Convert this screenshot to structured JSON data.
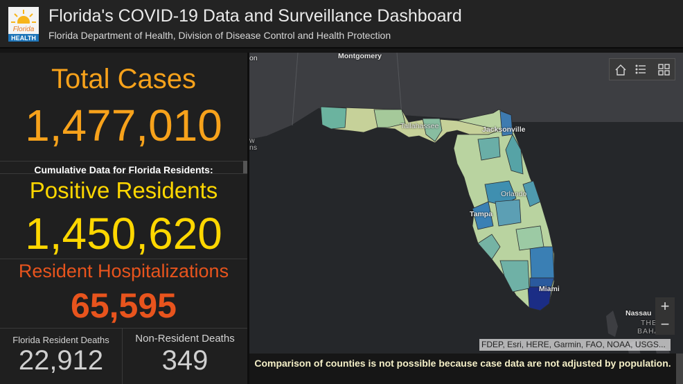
{
  "header": {
    "title": "Florida's COVID-19 Data and Surveillance Dashboard",
    "subtitle": "Florida Department of Health, Division of Disease Control and Health Protection",
    "logo_line1": "Florida",
    "logo_line2": "HEALTH"
  },
  "total_cases": {
    "label": "Total Cases",
    "value": "1,477,010"
  },
  "cumulative_label": "Cumulative Data for Florida Residents:",
  "positive_residents": {
    "label": "Positive Residents",
    "value": "1,450,620"
  },
  "hospitalizations": {
    "label": "Resident Hospitalizations",
    "value": "65,595"
  },
  "deaths": {
    "resident_label": "Florida Resident Deaths",
    "resident_value": "22,912",
    "nonresident_label": "Non-Resident Deaths",
    "nonresident_value": "349"
  },
  "map": {
    "cities": [
      "Montgomery",
      "Tallahassee",
      "Jacksonville",
      "Orlando",
      "Tampa",
      "Miami",
      "Nassau"
    ],
    "partial_labels": {
      "left_top": "on",
      "left_mid1": "w",
      "left_mid2": "ns",
      "bahamas1": "THE",
      "bahamas2": "BAHA"
    },
    "attribution": "FDEP, Esri, HERE, Garmin, FAO, NOAA, USGS...",
    "footnote": "Comparison of counties is not possible because case data are not adjusted by population.",
    "zoom_in": "+",
    "zoom_out": "−"
  },
  "colors": {
    "orange": "#f7a21b",
    "yellow": "#ffd700",
    "red_orange": "#e8541d",
    "gray_value": "#cfcfcf"
  }
}
